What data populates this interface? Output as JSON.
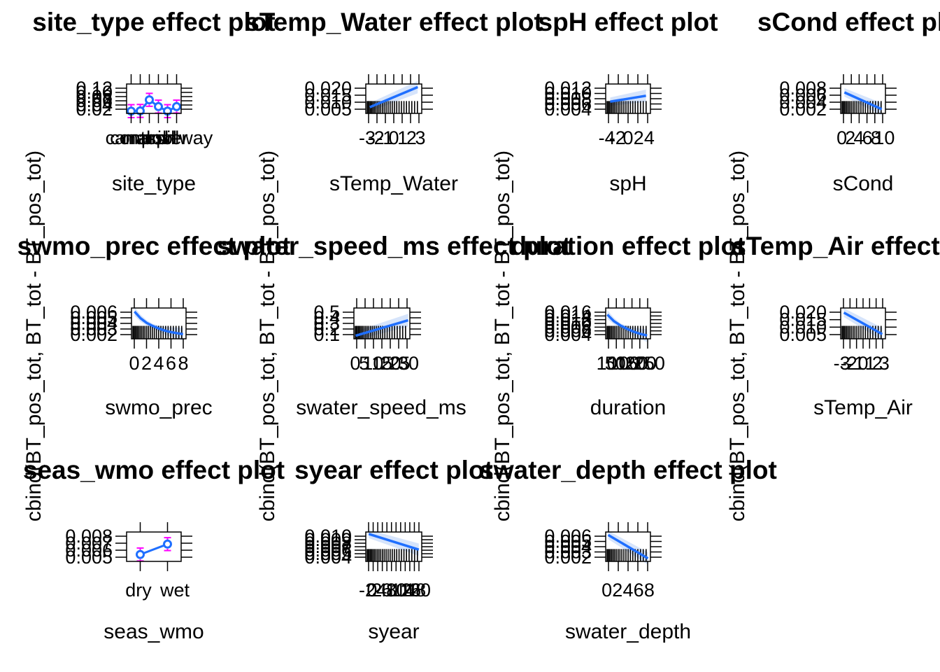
{
  "ylabel_text": "cbind(BT_pos_tot, BT_tot - BT_pos_tot)",
  "colors": {
    "line": "#1f6fff",
    "band": "#d6e4fb",
    "errorbar": "#ff00ff",
    "frame": "#000000"
  },
  "chart_data": [
    {
      "type": "line",
      "discrete": true,
      "title": "site_type effect plot",
      "xlabel": "site_type",
      "ylabel": "cbind(BT_pos_tot, BT_tot - BT_pos_tot)",
      "categories": [
        "canal",
        "control",
        "marsh",
        "pool",
        "river",
        "spillway"
      ],
      "x_tick_labels": [
        "canal",
        "control",
        "marsh",
        "pool",
        "river",
        "spillway"
      ],
      "values": [
        0.01,
        0.011,
        0.06,
        0.03,
        0.01,
        0.03
      ],
      "y_tick_labels": [
        "0.02",
        "0.04",
        "0.06",
        "0.08",
        "0.10",
        "0.12"
      ],
      "ylim": [
        0.0,
        0.13
      ]
    },
    {
      "type": "line",
      "title": "sTemp_Water effect plot",
      "xlabel": "sTemp_Water",
      "ylabel": "cbind(BT_pos_tot, BT_tot - BT_pos_tot)",
      "x": [
        -3,
        3
      ],
      "y": [
        0.007,
        0.02
      ],
      "x_tick_labels": [
        "-3",
        "-2",
        "-1",
        "0",
        "1",
        "2",
        "3"
      ],
      "y_tick_labels": [
        "0.005",
        "0.010",
        "0.015",
        "0.020"
      ],
      "xlim": [
        -3.5,
        3.5
      ],
      "ylim": [
        0.003,
        0.022
      ]
    },
    {
      "type": "line",
      "title": "spH effect plot",
      "xlabel": "spH",
      "ylabel": "cbind(BT_pos_tot, BT_tot - BT_pos_tot)",
      "x": [
        -4,
        4
      ],
      "y": [
        0.007,
        0.009
      ],
      "x_tick_labels": [
        "-4",
        "-2",
        "0",
        "2",
        "4"
      ],
      "y_tick_labels": [
        "0.004",
        "0.006",
        "0.008",
        "0.010",
        "0.012"
      ],
      "xlim": [
        -5,
        5
      ],
      "ylim": [
        0.003,
        0.013
      ]
    },
    {
      "type": "line",
      "title": "sCond effect plot",
      "xlabel": "sCond",
      "ylabel": "cbind(BT_pos_tot, BT_tot - BT_pos_tot)",
      "x": [
        0,
        10
      ],
      "y": [
        0.006,
        0.002
      ],
      "x_tick_labels": [
        "0",
        "2",
        "4",
        "6",
        "8",
        "10"
      ],
      "y_tick_labels": [
        "0.002",
        "0.004",
        "0.006",
        "0.008"
      ],
      "xlim": [
        -1,
        11
      ],
      "ylim": [
        0.001,
        0.008
      ]
    },
    {
      "type": "line",
      "title": "swmo_prec effect plot",
      "xlabel": "swmo_prec",
      "ylabel": "cbind(BT_pos_tot, BT_tot - BT_pos_tot)",
      "x": [
        0,
        1,
        2,
        3,
        4,
        5,
        6,
        7,
        8
      ],
      "y": [
        0.0068,
        0.0055,
        0.0046,
        0.004,
        0.0035,
        0.0031,
        0.0028,
        0.0026,
        0.0024
      ],
      "x_tick_labels": [
        "0",
        "2",
        "4",
        "6",
        "8"
      ],
      "y_tick_labels": [
        "0.002",
        "0.003",
        "0.004",
        "0.005",
        "0.006"
      ],
      "xlim": [
        -0.5,
        8.5
      ],
      "ylim": [
        0.0015,
        0.0075
      ]
    },
    {
      "type": "line",
      "title": "swater_speed_ms effect plot",
      "xlabel": "swater_speed_ms",
      "ylabel": "cbind(BT_pos_tot, BT_tot - BT_pos_tot)",
      "x": [
        0,
        30
      ],
      "y": [
        0.1,
        0.35
      ],
      "x_tick_labels": [
        "0",
        "5",
        "10",
        "15",
        "20",
        "25",
        "30"
      ],
      "y_tick_labels": [
        "0.1",
        "0.2",
        "0.3",
        "0.4",
        "0.5"
      ],
      "xlim": [
        -1,
        31
      ],
      "ylim": [
        0.05,
        0.55
      ]
    },
    {
      "type": "line",
      "title": "duration effect plot",
      "xlabel": "duration",
      "ylabel": "cbind(BT_pos_tot, BT_tot - BT_pos_tot)",
      "x": [
        10,
        30,
        50,
        70,
        90,
        110,
        130
      ],
      "y": [
        0.014,
        0.011,
        0.009,
        0.0075,
        0.0062,
        0.0052,
        0.0045
      ],
      "x_tick_labels": [
        "10",
        "50",
        "100",
        "150",
        "200",
        "250"
      ],
      "y_tick_labels": [
        "0.004",
        "0.006",
        "0.008",
        "0.010",
        "0.012",
        "0.014",
        "0.016"
      ],
      "xlim": [
        5,
        140
      ],
      "ylim": [
        0.003,
        0.017
      ]
    },
    {
      "type": "line",
      "title": "sTemp_Air effect plot",
      "xlabel": "sTemp_Air",
      "ylabel": "cbind(BT_pos_tot, BT_tot - BT_pos_tot)",
      "x": [
        -3,
        3
      ],
      "y": [
        0.02,
        0.006
      ],
      "x_tick_labels": [
        "-3",
        "-2",
        "-1",
        "0",
        "1",
        "2",
        "3"
      ],
      "y_tick_labels": [
        "0.005",
        "0.010",
        "0.015",
        "0.020"
      ],
      "xlim": [
        -3.5,
        3.5
      ],
      "ylim": [
        0.003,
        0.023
      ]
    },
    {
      "type": "line",
      "discrete": true,
      "title": "seas_wmo effect plot",
      "xlabel": "seas_wmo",
      "ylabel": "cbind(BT_pos_tot, BT_tot - BT_pos_tot)",
      "categories": [
        "dry",
        "wet"
      ],
      "x_tick_labels": [
        "dry",
        "wet"
      ],
      "values": [
        0.0056,
        0.0068
      ],
      "y_tick_labels": [
        "0.005",
        "0.006",
        "0.007",
        "0.008"
      ],
      "ylim": [
        0.0048,
        0.0082
      ]
    },
    {
      "type": "line",
      "title": "syear effect plot",
      "xlabel": "syear",
      "ylabel": "cbind(BT_pos_tot, BT_tot - BT_pos_tot)",
      "x": [
        -2,
        15
      ],
      "y": [
        0.0105,
        0.0065
      ],
      "x_tick_labels": [
        "-2",
        "0",
        "2",
        "4",
        "6",
        "8",
        "10",
        "12",
        "14",
        "16",
        "18",
        "20"
      ],
      "y_tick_labels": [
        "0.004",
        "0.005",
        "0.006",
        "0.007",
        "0.008",
        "0.009",
        "0.010"
      ],
      "xlim": [
        -3,
        16
      ],
      "ylim": [
        0.0035,
        0.011
      ]
    },
    {
      "type": "line",
      "title": "swater_depth effect plot",
      "xlabel": "swater_depth",
      "ylabel": "cbind(BT_pos_tot, BT_tot - BT_pos_tot)",
      "x": [
        0,
        8
      ],
      "y": [
        0.006,
        0.002
      ],
      "x_tick_labels": [
        "0",
        "2",
        "4",
        "6",
        "8"
      ],
      "y_tick_labels": [
        "0.002",
        "0.003",
        "0.004",
        "0.005",
        "0.006"
      ],
      "xlim": [
        -0.5,
        8.5
      ],
      "ylim": [
        0.0015,
        0.0065
      ]
    }
  ]
}
